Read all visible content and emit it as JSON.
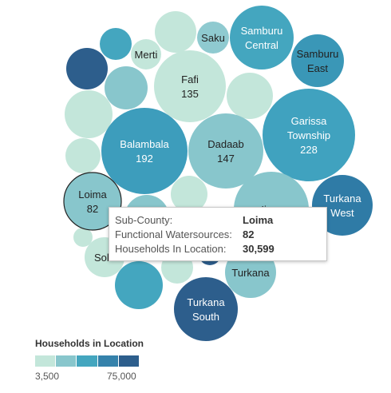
{
  "chart_data": {
    "type": "bubble",
    "bubbles": [
      {
        "label": "Merti",
        "color": "#c3e6da",
        "text": "#222222"
      },
      {
        "label": "Saku",
        "color": "#8fcad0",
        "text": "#222222"
      },
      {
        "label": "Samburu\nCentral",
        "color": "#44a6bf",
        "text": "#ffffff"
      },
      {
        "label": "Samburu\nEast",
        "color": "#3a97b7",
        "text": "#222222"
      },
      {
        "label": "Fafi",
        "value": "135",
        "color": "#c3e6da",
        "text": "#222222"
      },
      {
        "label": "Balambala",
        "value": "192",
        "color": "#3d9dbc",
        "text": "#ffffff"
      },
      {
        "label": "Dadaab",
        "value": "147",
        "color": "#88c6cc",
        "text": "#222222"
      },
      {
        "label": "Garissa\nTownship",
        "value": "228",
        "color": "#40a2bf",
        "text": "#ffffff"
      },
      {
        "label": "Loima",
        "value": "82",
        "color": "#88c6cc",
        "text": "#222222"
      },
      {
        "label": "Ijara",
        "color": "#88c6cc",
        "text": "#222222"
      },
      {
        "label": "Turkana\nWest",
        "color": "#2f7ba6",
        "text": "#ffffff"
      },
      {
        "label": "Solo",
        "color": "#c3e6da",
        "text": "#222222"
      },
      {
        "label": "Turkana",
        "color": "#88c6cc",
        "text": "#222222"
      },
      {
        "label": "Turkana\nSouth",
        "color": "#2d5e8c",
        "text": "#ffffff"
      },
      {
        "label": "",
        "color": "#c3e6da"
      },
      {
        "label": "",
        "color": "#44a6bf"
      },
      {
        "label": "",
        "color": "#2d5e8c"
      },
      {
        "label": "",
        "color": "#88c6cc"
      },
      {
        "label": "",
        "color": "#c3e6da"
      },
      {
        "label": "",
        "color": "#c3e6da"
      },
      {
        "label": "",
        "color": "#c3e6da"
      },
      {
        "label": "",
        "color": "#c3e6da"
      },
      {
        "label": "",
        "color": "#88c6cc"
      },
      {
        "label": "",
        "color": "#c3e6da"
      },
      {
        "label": "",
        "color": "#44a6bf"
      },
      {
        "label": "",
        "color": "#c3e6da"
      },
      {
        "label": "",
        "color": "#2d5e8c"
      }
    ],
    "selected": "Loima",
    "legend": {
      "title": "Households in Location",
      "min": "3,500",
      "max": "75,000",
      "colors": [
        "#c3e6da",
        "#88c6cc",
        "#44a6bf",
        "#3582ab",
        "#2d5e8c"
      ],
      "placement": "bottom-left"
    }
  },
  "tooltip": {
    "rows": [
      {
        "key": "Sub-County:",
        "value": "Loima"
      },
      {
        "key": "Functional Watersources:",
        "value": "82"
      },
      {
        "key": "Households In Location:",
        "value": "30,599"
      }
    ]
  }
}
